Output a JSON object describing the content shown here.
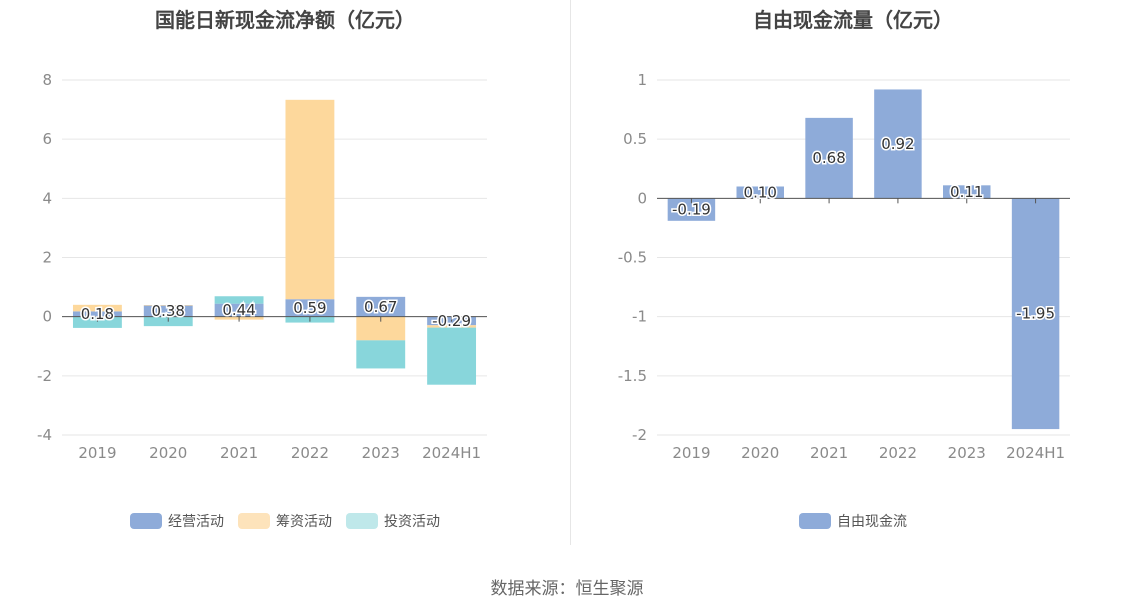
{
  "chart_data": [
    {
      "type": "bar",
      "stacked": true,
      "title": "国能日新现金流净额（亿元）",
      "categories": [
        "2019",
        "2020",
        "2021",
        "2022",
        "2023",
        "2024H1"
      ],
      "ylim": [
        -4,
        8
      ],
      "yticks": [
        -4,
        -2,
        0,
        2,
        4,
        6,
        8
      ],
      "grid": true,
      "legend_position": "bottom",
      "series": [
        {
          "name": "经营活动",
          "color": "#8eabd9",
          "values": [
            0.18,
            0.38,
            0.44,
            0.59,
            0.67,
            -0.29
          ]
        },
        {
          "name": "筹资活动",
          "color": "#fdd89c",
          "values": [
            0.22,
            0.01,
            -0.1,
            6.74,
            -0.8,
            -0.08
          ]
        },
        {
          "name": "投资活动",
          "color": "#88d6db",
          "values": [
            -0.38,
            -0.32,
            0.25,
            -0.2,
            -0.95,
            -1.93
          ]
        }
      ],
      "data_labels": [
        "0.18",
        "0.38",
        "0.44",
        "0.59",
        "0.67",
        "-0.29"
      ],
      "legend_swatch_colors": [
        "#8eabd9",
        "#fde3bb",
        "#bfe8ea"
      ]
    },
    {
      "type": "bar",
      "title": "自由现金流量（亿元）",
      "categories": [
        "2019",
        "2020",
        "2021",
        "2022",
        "2023",
        "2024H1"
      ],
      "ylim": [
        -2,
        1
      ],
      "yticks": [
        -2,
        -1.5,
        -1,
        -0.5,
        0,
        0.5,
        1
      ],
      "grid": true,
      "legend_position": "bottom",
      "series": [
        {
          "name": "自由现金流",
          "color": "#8eabd9",
          "values": [
            -0.19,
            0.1,
            0.68,
            0.92,
            0.11,
            -1.95
          ]
        }
      ],
      "data_labels": [
        "-0.19",
        "0.10",
        "0.68",
        "0.92",
        "0.11",
        "-1.95"
      ]
    }
  ],
  "source": "数据来源：恒生聚源"
}
